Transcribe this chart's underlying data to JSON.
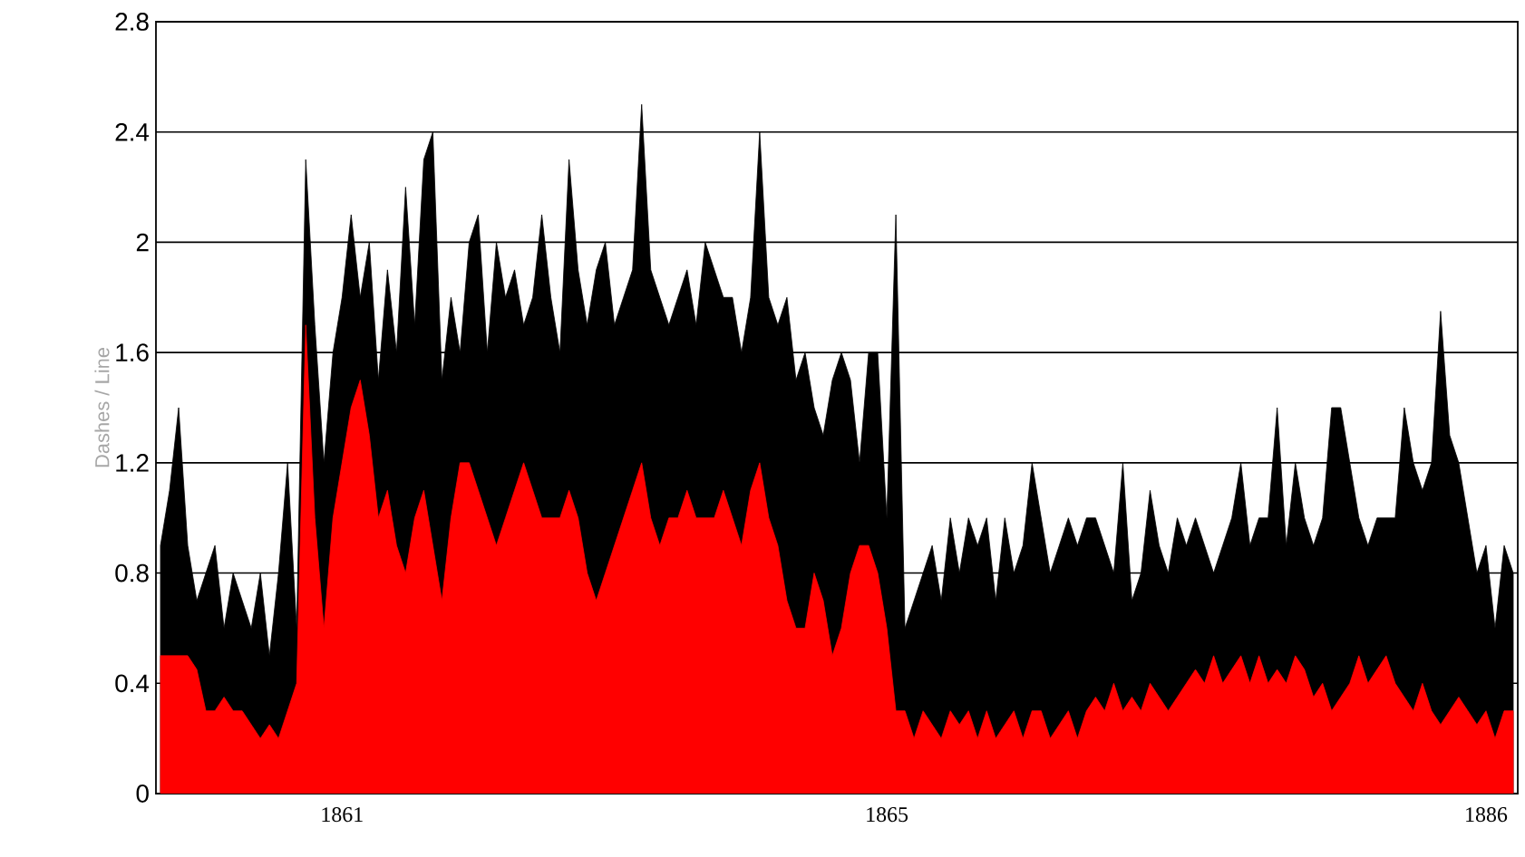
{
  "chart_data": {
    "type": "area",
    "ylabel": "Dashes / Line",
    "categories": [
      null,
      null,
      null,
      null,
      null,
      null,
      null,
      null,
      null,
      null,
      null,
      null,
      null,
      null,
      null,
      null,
      null,
      null,
      null,
      null,
      "1861",
      null,
      null,
      null,
      null,
      null,
      null,
      null,
      null,
      null,
      null,
      null,
      null,
      null,
      null,
      null,
      null,
      null,
      null,
      null,
      null,
      null,
      null,
      null,
      null,
      null,
      null,
      null,
      null,
      null,
      null,
      null,
      null,
      null,
      null,
      null,
      null,
      null,
      null,
      null,
      null,
      null,
      null,
      null,
      null,
      null,
      null,
      null,
      null,
      null,
      null,
      null,
      null,
      null,
      null,
      null,
      null,
      null,
      null,
      null,
      "1865",
      null,
      null,
      null,
      null,
      null,
      null,
      null,
      null,
      null,
      null,
      null,
      null,
      null,
      null,
      null,
      null,
      null,
      null,
      null,
      null,
      null,
      null,
      null,
      null,
      null,
      null,
      null,
      null,
      null,
      null,
      null,
      null,
      null,
      null,
      null,
      null,
      null,
      null,
      null,
      null,
      null,
      null,
      null,
      null,
      null,
      null,
      null,
      null,
      null,
      null,
      null,
      null,
      null,
      null,
      null,
      null,
      null,
      null,
      null,
      null,
      null,
      null,
      null,
      null,
      null,
      "1886",
      null,
      null,
      null
    ],
    "series": [
      {
        "color": "#000000",
        "values": [
          0.9,
          1.1,
          1.4,
          0.9,
          0.7,
          0.8,
          0.9,
          0.6,
          0.8,
          0.7,
          0.6,
          0.8,
          0.5,
          0.8,
          1.2,
          0.6,
          2.3,
          1.7,
          1.2,
          1.6,
          1.8,
          2.1,
          1.8,
          2.0,
          1.5,
          1.9,
          1.6,
          2.2,
          1.7,
          2.3,
          2.4,
          1.5,
          1.8,
          1.6,
          2.0,
          2.1,
          1.6,
          2.0,
          1.8,
          1.9,
          1.7,
          1.8,
          2.1,
          1.8,
          1.6,
          2.3,
          1.9,
          1.7,
          1.9,
          2.0,
          1.7,
          1.8,
          1.9,
          2.5,
          1.9,
          1.8,
          1.7,
          1.8,
          1.9,
          1.7,
          2.0,
          1.9,
          1.8,
          1.8,
          1.6,
          1.8,
          2.4,
          1.8,
          1.7,
          1.8,
          1.5,
          1.6,
          1.4,
          1.3,
          1.5,
          1.6,
          1.5,
          1.2,
          1.6,
          1.6,
          1.0,
          2.1,
          0.6,
          0.7,
          0.8,
          0.9,
          0.7,
          1.0,
          0.8,
          1.0,
          0.9,
          1.0,
          0.7,
          1.0,
          0.8,
          0.9,
          1.2,
          1.0,
          0.8,
          0.9,
          1.0,
          0.9,
          1.0,
          1.0,
          0.9,
          0.8,
          1.2,
          0.7,
          0.8,
          1.1,
          0.9,
          0.8,
          1.0,
          0.9,
          1.0,
          0.9,
          0.8,
          0.9,
          1.0,
          1.2,
          0.9,
          1.0,
          1.0,
          1.4,
          0.9,
          1.2,
          1.0,
          0.9,
          1.0,
          1.4,
          1.4,
          1.2,
          1.0,
          0.9,
          1.0,
          1.0,
          1.0,
          1.4,
          1.2,
          1.1,
          1.2,
          1.75,
          1.3,
          1.2,
          1.0,
          0.8,
          0.9,
          0.6,
          0.9,
          0.8
        ]
      },
      {
        "color": "#ff0000",
        "values": [
          0.5,
          0.5,
          0.5,
          0.5,
          0.45,
          0.3,
          0.3,
          0.35,
          0.3,
          0.3,
          0.25,
          0.2,
          0.25,
          0.2,
          0.3,
          0.4,
          1.7,
          1.0,
          0.6,
          1.0,
          1.2,
          1.4,
          1.5,
          1.3,
          1.0,
          1.1,
          0.9,
          0.8,
          1.0,
          1.1,
          0.9,
          0.7,
          1.0,
          1.2,
          1.2,
          1.1,
          1.0,
          0.9,
          1.0,
          1.1,
          1.2,
          1.1,
          1.0,
          1.0,
          1.0,
          1.1,
          1.0,
          0.8,
          0.7,
          0.8,
          0.9,
          1.0,
          1.1,
          1.2,
          1.0,
          0.9,
          1.0,
          1.0,
          1.1,
          1.0,
          1.0,
          1.0,
          1.1,
          1.0,
          0.9,
          1.1,
          1.2,
          1.0,
          0.9,
          0.7,
          0.6,
          0.6,
          0.8,
          0.7,
          0.5,
          0.6,
          0.8,
          0.9,
          0.9,
          0.8,
          0.6,
          0.3,
          0.3,
          0.2,
          0.3,
          0.25,
          0.2,
          0.3,
          0.25,
          0.3,
          0.2,
          0.3,
          0.2,
          0.25,
          0.3,
          0.2,
          0.3,
          0.3,
          0.2,
          0.25,
          0.3,
          0.2,
          0.3,
          0.35,
          0.3,
          0.4,
          0.3,
          0.35,
          0.3,
          0.4,
          0.35,
          0.3,
          0.35,
          0.4,
          0.45,
          0.4,
          0.5,
          0.4,
          0.45,
          0.5,
          0.4,
          0.5,
          0.4,
          0.45,
          0.4,
          0.5,
          0.45,
          0.35,
          0.4,
          0.3,
          0.35,
          0.4,
          0.5,
          0.4,
          0.45,
          0.5,
          0.4,
          0.35,
          0.3,
          0.4,
          0.3,
          0.25,
          0.3,
          0.35,
          0.3,
          0.25,
          0.3,
          0.2,
          0.3,
          0.3
        ]
      }
    ],
    "ylim": [
      0,
      2.8
    ],
    "yticks": [
      0,
      0.4,
      0.8,
      1.2,
      1.6,
      2,
      2.4,
      2.8
    ],
    "grid": "y"
  }
}
